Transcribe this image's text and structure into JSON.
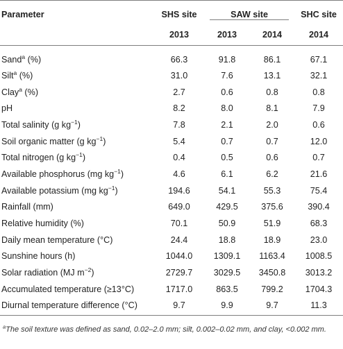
{
  "table": {
    "header": {
      "parameter": "Parameter",
      "sites": {
        "shs": "SHS site",
        "saw": "SAW site",
        "shc": "SHC site"
      },
      "years": [
        "2013",
        "2013",
        "2014",
        "2014"
      ]
    },
    "rows": [
      {
        "name": "Sand",
        "sup": "a",
        "unit": " (%)",
        "values": [
          "66.3",
          "91.8",
          "86.1",
          "67.1"
        ]
      },
      {
        "name": "Silt",
        "sup": "a",
        "unit": " (%)",
        "values": [
          "31.0",
          "7.6",
          "13.1",
          "32.1"
        ]
      },
      {
        "name": "Clay",
        "sup": "a",
        "unit": " (%)",
        "values": [
          "2.7",
          "0.6",
          "0.8",
          "0.8"
        ]
      },
      {
        "name": "pH",
        "sup": "",
        "unit": "",
        "values": [
          "8.2",
          "8.0",
          "8.1",
          "7.9"
        ]
      },
      {
        "name": "Total salinity (g kg",
        "sup": "−1",
        "unit": ")",
        "values": [
          "7.8",
          "2.1",
          "2.0",
          "0.6"
        ]
      },
      {
        "name": "Soil organic matter (g kg",
        "sup": "−1",
        "unit": ")",
        "values": [
          "5.4",
          "0.7",
          "0.7",
          "12.0"
        ]
      },
      {
        "name": "Total nitrogen (g kg",
        "sup": "−1",
        "unit": ")",
        "values": [
          "0.4",
          "0.5",
          "0.6",
          "0.7"
        ]
      },
      {
        "name": "Available phosphorus (mg kg",
        "sup": "−1",
        "unit": ")",
        "values": [
          "4.6",
          "6.1",
          "6.2",
          "21.6"
        ]
      },
      {
        "name": "Available potassium (mg kg",
        "sup": "−1",
        "unit": ")",
        "values": [
          "194.6",
          "54.1",
          "55.3",
          "75.4"
        ]
      },
      {
        "name": "Rainfall (mm)",
        "sup": "",
        "unit": "",
        "values": [
          "649.0",
          "429.5",
          "375.6",
          "390.4"
        ]
      },
      {
        "name": "Relative humidity (%)",
        "sup": "",
        "unit": "",
        "values": [
          "70.1",
          "50.9",
          "51.9",
          "68.3"
        ]
      },
      {
        "name": "Daily mean temperature (°C)",
        "sup": "",
        "unit": "",
        "values": [
          "24.4",
          "18.8",
          "18.9",
          "23.0"
        ]
      },
      {
        "name": "Sunshine hours (h)",
        "sup": "",
        "unit": "",
        "values": [
          "1044.0",
          "1309.1",
          "1163.4",
          "1008.5"
        ]
      },
      {
        "name": "Solar radiation (MJ m",
        "sup": "−2",
        "unit": ")",
        "values": [
          "2729.7",
          "3029.5",
          "3450.8",
          "3013.2"
        ]
      },
      {
        "name": "Accumulated temperature (≥13°C)",
        "sup": "",
        "unit": "",
        "values": [
          "1717.0",
          "863.5",
          "799.2",
          "1704.3"
        ]
      },
      {
        "name": "Diurnal temperature difference (°C)",
        "sup": "",
        "unit": "",
        "values": [
          "9.7",
          "9.9",
          "9.7",
          "11.3"
        ]
      }
    ]
  },
  "footnote": {
    "sup": "a",
    "text": "The soil texture was defined as sand, 0.02–2.0 mm; silt, 0.002–0.02 mm, and clay, <0.002 mm."
  }
}
